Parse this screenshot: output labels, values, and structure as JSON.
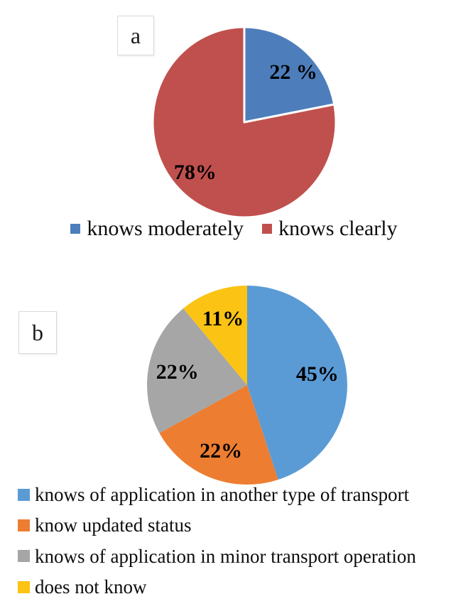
{
  "figure": {
    "background_color": "#ffffff",
    "panels": [
      "a",
      "b"
    ]
  },
  "chart_data": [
    {
      "id": "a",
      "type": "pie",
      "panel_label": "a",
      "start_angle_deg": 0,
      "direction": "clockwise",
      "legend_position": "bottom-center",
      "slice_separator_color": "#ffffff",
      "slices": [
        {
          "label": "knows moderately",
          "value": 22,
          "display": "22 %",
          "color": "#4D7EBB"
        },
        {
          "label": "knows clearly",
          "value": 78,
          "display": "78%",
          "color": "#C0504D"
        }
      ]
    },
    {
      "id": "b",
      "type": "pie",
      "panel_label": "b",
      "start_angle_deg": 0,
      "direction": "clockwise",
      "legend_position": "bottom-left",
      "slices": [
        {
          "label": "knows of application in another type of transport",
          "value": 45,
          "display": "45%",
          "color": "#5B9BD5"
        },
        {
          "label": "know updated status",
          "value": 22,
          "display": "22%",
          "color": "#ED7D31"
        },
        {
          "label": "knows of application in minor transport operation",
          "value": 22,
          "display": "22%",
          "color": "#A6A6A6"
        },
        {
          "label": "does not know",
          "value": 11,
          "display": "11%",
          "color": "#FBC313"
        }
      ]
    }
  ]
}
